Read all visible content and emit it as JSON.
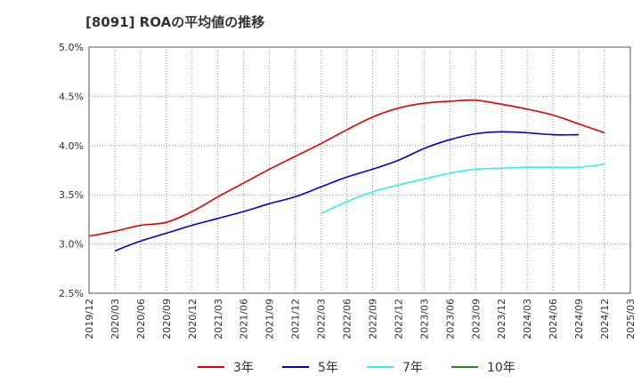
{
  "title": "[8091]  ROAの平均値の推移",
  "chart_data": {
    "type": "line",
    "title": "[8091]  ROAの平均値の推移",
    "xlabel": "",
    "ylabel": "",
    "ylim": [
      2.5,
      5.0
    ],
    "y_ticks": [
      "2.5%",
      "3.0%",
      "3.5%",
      "4.0%",
      "4.5%",
      "5.0%"
    ],
    "y_tick_values": [
      2.5,
      3.0,
      3.5,
      4.0,
      4.5,
      5.0
    ],
    "x_ticks": [
      "2019/12",
      "2020/03",
      "2020/06",
      "2020/09",
      "2020/12",
      "2021/03",
      "2021/06",
      "2021/09",
      "2021/12",
      "2022/03",
      "2022/06",
      "2022/09",
      "2022/12",
      "2023/03",
      "2023/06",
      "2023/09",
      "2023/12",
      "2024/03",
      "2024/06",
      "2024/09",
      "2024/12",
      "2025/03"
    ],
    "grid": true,
    "legend_position": "bottom",
    "series": [
      {
        "name": "3年",
        "color": "#e00000",
        "start_index": 0,
        "values": [
          3.08,
          3.13,
          3.19,
          3.22,
          3.33,
          3.48,
          3.62,
          3.76,
          3.89,
          4.02,
          4.16,
          4.29,
          4.38,
          4.43,
          4.45,
          4.46,
          4.42,
          4.37,
          4.31,
          4.22,
          4.13
        ]
      },
      {
        "name": "5年",
        "color": "#0000cc",
        "start_index": 1,
        "values": [
          2.93,
          3.03,
          3.11,
          3.19,
          3.26,
          3.33,
          3.41,
          3.48,
          3.58,
          3.68,
          3.76,
          3.85,
          3.97,
          4.06,
          4.12,
          4.14,
          4.13,
          4.11,
          4.11
        ]
      },
      {
        "name": "7年",
        "color": "#33eeee",
        "start_index": 9,
        "values": [
          3.31,
          3.43,
          3.53,
          3.6,
          3.66,
          3.72,
          3.76,
          3.77,
          3.78,
          3.78,
          3.78,
          3.81
        ]
      },
      {
        "name": "10年",
        "color": "#228b22",
        "start_index": 0,
        "values": []
      }
    ]
  }
}
